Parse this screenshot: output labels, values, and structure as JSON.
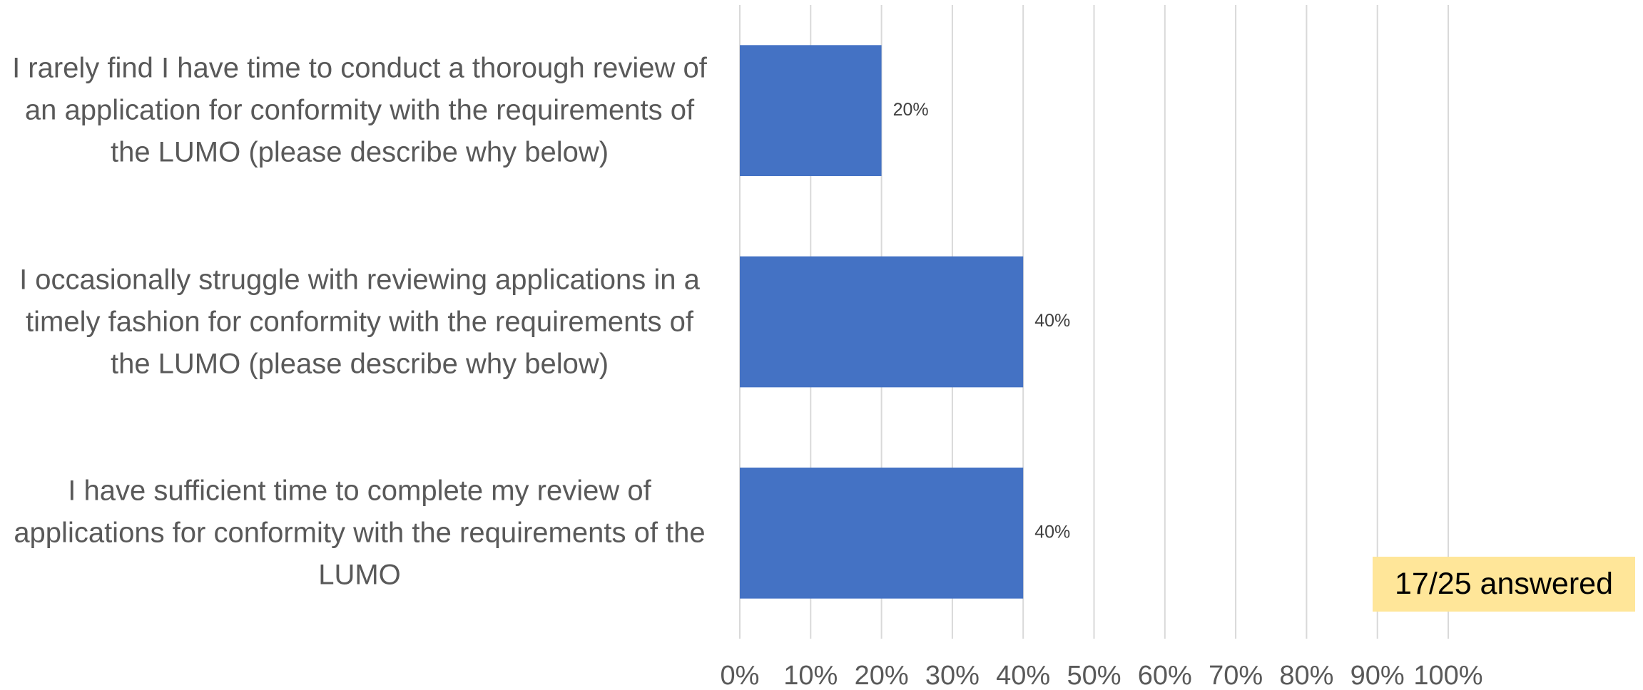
{
  "chart_data": {
    "type": "barh",
    "categories": [
      "I rarely find I have time to conduct a thorough review of an application for conformity with the requirements of the LUMO (please describe why below)",
      "I occasionally struggle with reviewing applications in a timely fashion for conformity with the requirements of the LUMO (please describe why below)",
      "I have sufficient time to complete my review of applications for conformity with the requirements of the LUMO"
    ],
    "values": [
      20,
      40,
      40
    ],
    "value_labels": [
      "20%",
      "40%",
      "40%"
    ],
    "color": "#4472c4",
    "xlim": [
      0,
      100
    ],
    "xticks": [
      {
        "value": 0,
        "label": "0%"
      },
      {
        "value": 10,
        "label": "10%"
      },
      {
        "value": 20,
        "label": "20%"
      },
      {
        "value": 30,
        "label": "30%"
      },
      {
        "value": 40,
        "label": "40%"
      },
      {
        "value": 50,
        "label": "50%"
      },
      {
        "value": 60,
        "label": "60%"
      },
      {
        "value": 70,
        "label": "70%"
      },
      {
        "value": 80,
        "label": "80%"
      },
      {
        "value": 90,
        "label": "90%"
      },
      {
        "value": 100,
        "label": "100%"
      }
    ],
    "grid": true,
    "annotation": "17/25 answered"
  }
}
